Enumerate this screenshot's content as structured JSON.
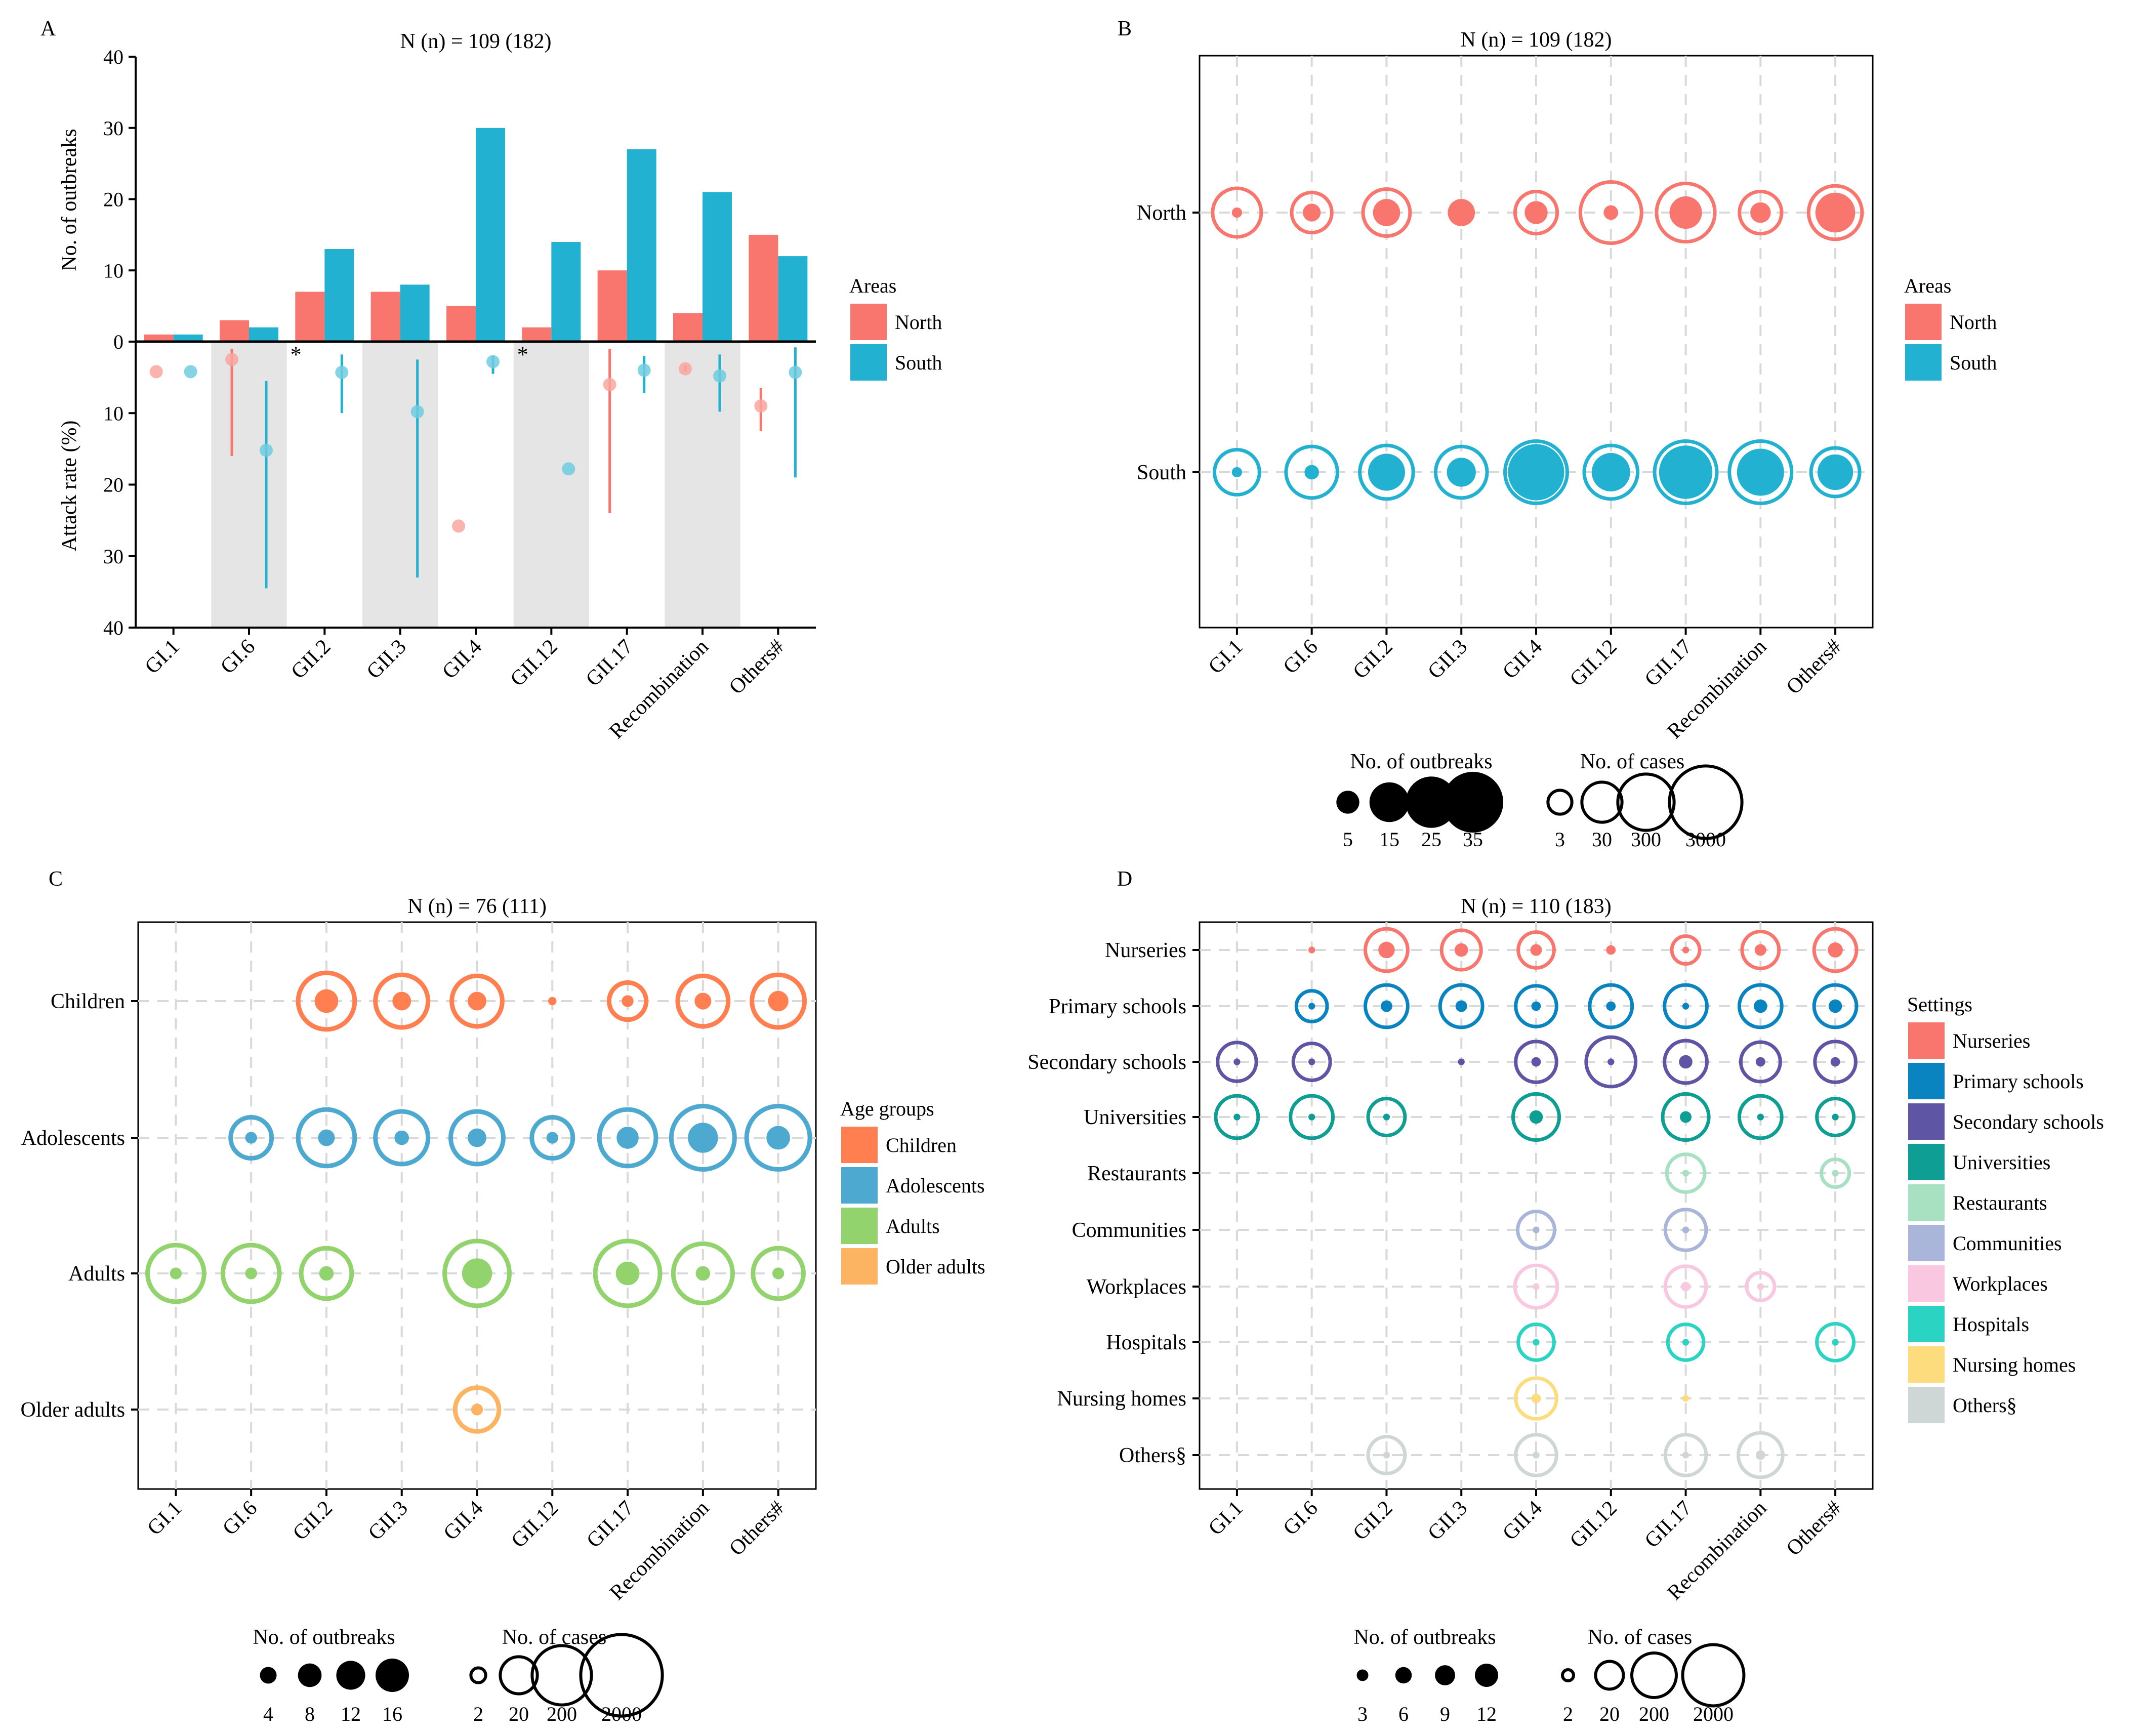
{
  "figure": {
    "description_title": "Norovirus outbreak genotype distribution figure",
    "colors": {
      "north": "#F8766D",
      "south": "#22B1D0",
      "shade": "#E5E5E5",
      "grid": "#D9D9D9"
    }
  },
  "chart_data": [
    {
      "id": "A",
      "type": "bar",
      "panel_label": "A",
      "title": "N (n) = 109 (182)",
      "categories": [
        "GI.1",
        "GI.6",
        "GII.2",
        "GII.3",
        "GII.4",
        "GII.12",
        "GII.17",
        "Recombination",
        "Others#"
      ],
      "top": {
        "ylabel": "No. of outbreaks",
        "ylim": [
          0,
          40
        ],
        "yticks": [
          "40",
          "30",
          "20",
          "10",
          "0"
        ],
        "series": [
          {
            "name": "North",
            "color": "#F8766D",
            "values": [
              1,
              3,
              7,
              7,
              5,
              2,
              10,
              4,
              15
            ]
          },
          {
            "name": "South",
            "color": "#22B1D0",
            "values": [
              1,
              2,
              13,
              8,
              30,
              14,
              27,
              21,
              12
            ]
          }
        ]
      },
      "bottom": {
        "ylabel": "Attack rate (%)",
        "ylim": [
          0,
          40
        ],
        "yticks": [
          "10",
          "20",
          "30",
          "40"
        ],
        "shaded_categories": [
          1,
          3,
          5,
          7
        ],
        "asterisk_categories": [
          2,
          5
        ],
        "asterisk_text": "*",
        "series": [
          {
            "name": "North",
            "color": "#F8766D",
            "points": [
              [
                0,
                4.2,
                null,
                null
              ],
              [
                1,
                2.5,
                1,
                16
              ],
              [
                4,
                25.8,
                null,
                null
              ],
              [
                6,
                6,
                1,
                24
              ],
              [
                7,
                3.8,
                3.3,
                4.2
              ],
              [
                8,
                9,
                6.5,
                12.5
              ]
            ]
          },
          {
            "name": "South",
            "color": "#22B1D0",
            "points": [
              [
                0,
                4.2,
                null,
                null
              ],
              [
                1,
                15.2,
                5.5,
                34.5
              ],
              [
                2,
                4.3,
                1.8,
                10
              ],
              [
                3,
                9.8,
                2.5,
                33
              ],
              [
                4,
                2.8,
                2,
                4.5
              ],
              [
                5,
                17.8,
                null,
                null
              ],
              [
                6,
                4,
                2,
                7.2
              ],
              [
                7,
                4.8,
                1.8,
                9.8
              ],
              [
                8,
                4.3,
                0.8,
                19
              ]
            ]
          }
        ]
      },
      "legend": {
        "title": "Areas",
        "items": [
          "North",
          "South"
        ]
      }
    },
    {
      "id": "B",
      "type": "scatter",
      "panel_label": "B",
      "title": "N (n) = 109 (182)",
      "categories": [
        "GI.1",
        "GI.6",
        "GII.2",
        "GII.3",
        "GII.4",
        "GII.12",
        "GII.17",
        "Recombination",
        "Others#"
      ],
      "rows": [
        "North",
        "South"
      ],
      "row_colors": [
        "#F8766D",
        "#22B1D0"
      ],
      "points": [
        {
          "row": 0,
          "col": 0,
          "outbreaks": 1,
          "cases": 100
        },
        {
          "row": 0,
          "col": 1,
          "outbreaks": 3,
          "cases": 30
        },
        {
          "row": 0,
          "col": 2,
          "outbreaks": 7,
          "cases": 80
        },
        {
          "row": 0,
          "col": 3,
          "outbreaks": 7,
          "cases": null
        },
        {
          "row": 0,
          "col": 4,
          "outbreaks": 5,
          "cases": 40
        },
        {
          "row": 0,
          "col": 5,
          "outbreaks": 2,
          "cases": 600
        },
        {
          "row": 0,
          "col": 6,
          "outbreaks": 10,
          "cases": 400
        },
        {
          "row": 0,
          "col": 7,
          "outbreaks": 4,
          "cases": 40
        },
        {
          "row": 0,
          "col": 8,
          "outbreaks": 15,
          "cases": 200
        },
        {
          "row": 1,
          "col": 0,
          "outbreaks": 1,
          "cases": 60
        },
        {
          "row": 1,
          "col": 1,
          "outbreaks": 2,
          "cases": 150
        },
        {
          "row": 1,
          "col": 2,
          "outbreaks": 13,
          "cases": 200
        },
        {
          "row": 1,
          "col": 3,
          "outbreaks": 8,
          "cases": 150
        },
        {
          "row": 1,
          "col": 4,
          "outbreaks": 30,
          "cases": 700
        },
        {
          "row": 1,
          "col": 5,
          "outbreaks": 14,
          "cases": 200
        },
        {
          "row": 1,
          "col": 6,
          "outbreaks": 27,
          "cases": 700
        },
        {
          "row": 1,
          "col": 7,
          "outbreaks": 21,
          "cases": 700
        },
        {
          "row": 1,
          "col": 8,
          "outbreaks": 12,
          "cases": 100
        }
      ],
      "legend": {
        "title": "Areas",
        "items": [
          "North",
          "South"
        ]
      },
      "size_legend": {
        "outbreaks_title": "No. of outbreaks",
        "outbreaks": [
          {
            "label": "5",
            "value": 5
          },
          {
            "label": "15",
            "value": 15
          },
          {
            "label": "25",
            "value": 25
          },
          {
            "label": "35",
            "value": 35
          }
        ],
        "cases_title": "No. of cases",
        "cases": [
          {
            "label": "3",
            "value": 3
          },
          {
            "label": "30",
            "value": 30
          },
          {
            "label": "300",
            "value": 300
          },
          {
            "label": "3000",
            "value": 3000
          }
        ]
      }
    },
    {
      "id": "C",
      "type": "scatter",
      "panel_label": "C",
      "title": "N (n) = 76 (111)",
      "categories": [
        "GI.1",
        "GI.6",
        "GII.2",
        "GII.3",
        "GII.4",
        "GII.12",
        "GII.17",
        "Recombination",
        "Others#"
      ],
      "rows": [
        "Children",
        "Adolescents",
        "Adults",
        "Older adults"
      ],
      "row_colors": [
        "#FF7F50",
        "#4EA9D0",
        "#92D36E",
        "#FDB462"
      ],
      "points": [
        {
          "row": 0,
          "col": 2,
          "outbreaks": 8,
          "cases": 150
        },
        {
          "row": 0,
          "col": 3,
          "outbreaks": 5,
          "cases": 100
        },
        {
          "row": 0,
          "col": 4,
          "outbreaks": 5,
          "cases": 80
        },
        {
          "row": 0,
          "col": 5,
          "outbreaks": 1,
          "cases": null
        },
        {
          "row": 0,
          "col": 6,
          "outbreaks": 2,
          "cases": 20
        },
        {
          "row": 0,
          "col": 7,
          "outbreaks": 4,
          "cases": 80
        },
        {
          "row": 0,
          "col": 8,
          "outbreaks": 6,
          "cases": 100
        },
        {
          "row": 1,
          "col": 1,
          "outbreaks": 2,
          "cases": 30
        },
        {
          "row": 1,
          "col": 2,
          "outbreaks": 4,
          "cases": 150
        },
        {
          "row": 1,
          "col": 3,
          "outbreaks": 3,
          "cases": 100
        },
        {
          "row": 1,
          "col": 4,
          "outbreaks": 5,
          "cases": 100
        },
        {
          "row": 1,
          "col": 5,
          "outbreaks": 2,
          "cases": 30
        },
        {
          "row": 1,
          "col": 6,
          "outbreaks": 7,
          "cases": 150
        },
        {
          "row": 1,
          "col": 7,
          "outbreaks": 13,
          "cases": 300
        },
        {
          "row": 1,
          "col": 8,
          "outbreaks": 8,
          "cases": 300
        },
        {
          "row": 2,
          "col": 0,
          "outbreaks": 2,
          "cases": 150
        },
        {
          "row": 2,
          "col": 1,
          "outbreaks": 2,
          "cases": 150
        },
        {
          "row": 2,
          "col": 2,
          "outbreaks": 3,
          "cases": 80
        },
        {
          "row": 2,
          "col": 4,
          "outbreaks": 13,
          "cases": 350
        },
        {
          "row": 2,
          "col": 6,
          "outbreaks": 8,
          "cases": 350
        },
        {
          "row": 2,
          "col": 7,
          "outbreaks": 3,
          "cases": 200
        },
        {
          "row": 2,
          "col": 8,
          "outbreaks": 2,
          "cases": 80
        },
        {
          "row": 3,
          "col": 4,
          "outbreaks": 2,
          "cases": 40
        }
      ],
      "legend": {
        "title": "Age groups",
        "items": [
          "Children",
          "Adolescents",
          "Adults",
          "Older adults"
        ]
      },
      "size_legend": {
        "outbreaks_title": "No. of outbreaks",
        "outbreaks": [
          {
            "label": "4",
            "value": 4
          },
          {
            "label": "8",
            "value": 8
          },
          {
            "label": "12",
            "value": 12
          },
          {
            "label": "16",
            "value": 16
          }
        ],
        "cases_title": "No. of cases",
        "cases": [
          {
            "label": "2",
            "value": 2
          },
          {
            "label": "20",
            "value": 20
          },
          {
            "label": "200",
            "value": 200
          },
          {
            "label": "2000",
            "value": 2000
          }
        ]
      }
    },
    {
      "id": "D",
      "type": "scatter",
      "panel_label": "D",
      "title": "N (n) = 110 (183)",
      "categories": [
        "GI.1",
        "GI.6",
        "GII.2",
        "GII.3",
        "GII.4",
        "GII.12",
        "GII.17",
        "Recombination",
        "Others#"
      ],
      "rows": [
        "Nurseries",
        "Primary schools",
        "Secondary schools",
        "Universities",
        "Restaurants",
        "Communities",
        "Workplaces",
        "Hospitals",
        "Nursing homes",
        "Others§"
      ],
      "row_colors": [
        "#F8766D",
        "#0A84C1",
        "#5E55A5",
        "#0E9E94",
        "#A8E0C2",
        "#AAB5DA",
        "#F9C8E0",
        "#2BD3C3",
        "#FDDC7E",
        "#CED7D6"
      ],
      "points": [
        {
          "row": 0,
          "col": 1,
          "outbreaks": 1,
          "cases": null
        },
        {
          "row": 0,
          "col": 2,
          "outbreaks": 6,
          "cases": 150
        },
        {
          "row": 0,
          "col": 3,
          "outbreaks": 4,
          "cases": 100
        },
        {
          "row": 0,
          "col": 4,
          "outbreaks": 3,
          "cases": 60
        },
        {
          "row": 0,
          "col": 5,
          "outbreaks": 2,
          "cases": null
        },
        {
          "row": 0,
          "col": 6,
          "outbreaks": 1,
          "cases": 20
        },
        {
          "row": 0,
          "col": 7,
          "outbreaks": 3,
          "cases": 70
        },
        {
          "row": 0,
          "col": 8,
          "outbreaks": 5,
          "cases": 150
        },
        {
          "row": 1,
          "col": 1,
          "outbreaks": 1,
          "cases": 30
        },
        {
          "row": 1,
          "col": 2,
          "outbreaks": 3,
          "cases": 150
        },
        {
          "row": 1,
          "col": 3,
          "outbreaks": 3,
          "cases": 150
        },
        {
          "row": 1,
          "col": 4,
          "outbreaks": 2,
          "cases": 120
        },
        {
          "row": 1,
          "col": 5,
          "outbreaks": 2,
          "cases": 150
        },
        {
          "row": 1,
          "col": 6,
          "outbreaks": 1,
          "cases": 150
        },
        {
          "row": 1,
          "col": 7,
          "outbreaks": 4,
          "cases": 150
        },
        {
          "row": 1,
          "col": 8,
          "outbreaks": 4,
          "cases": 150
        },
        {
          "row": 2,
          "col": 0,
          "outbreaks": 1,
          "cases": 90
        },
        {
          "row": 2,
          "col": 1,
          "outbreaks": 1,
          "cases": 70
        },
        {
          "row": 2,
          "col": 3,
          "outbreaks": 1,
          "cases": null
        },
        {
          "row": 2,
          "col": 4,
          "outbreaks": 2,
          "cases": 120
        },
        {
          "row": 2,
          "col": 5,
          "outbreaks": 1,
          "cases": 400
        },
        {
          "row": 2,
          "col": 6,
          "outbreaks": 4,
          "cases": 150
        },
        {
          "row": 2,
          "col": 7,
          "outbreaks": 2,
          "cases": 100
        },
        {
          "row": 2,
          "col": 8,
          "outbreaks": 2,
          "cases": 120
        },
        {
          "row": 3,
          "col": 0,
          "outbreaks": 1,
          "cases": 150
        },
        {
          "row": 3,
          "col": 1,
          "outbreaks": 1,
          "cases": 150
        },
        {
          "row": 3,
          "col": 2,
          "outbreaks": 1,
          "cases": 70
        },
        {
          "row": 3,
          "col": 4,
          "outbreaks": 4,
          "cases": 250
        },
        {
          "row": 3,
          "col": 6,
          "outbreaks": 3,
          "cases": 250
        },
        {
          "row": 3,
          "col": 7,
          "outbreaks": 1,
          "cases": 150
        },
        {
          "row": 3,
          "col": 8,
          "outbreaks": 1,
          "cases": 70
        },
        {
          "row": 4,
          "col": 6,
          "outbreaks": 1,
          "cases": 80
        },
        {
          "row": 4,
          "col": 8,
          "outbreaks": 1,
          "cases": 20
        },
        {
          "row": 5,
          "col": 4,
          "outbreaks": 1,
          "cases": 70
        },
        {
          "row": 5,
          "col": 6,
          "outbreaks": 1,
          "cases": 120
        },
        {
          "row": 6,
          "col": 4,
          "outbreaks": 1,
          "cases": 150
        },
        {
          "row": 6,
          "col": 6,
          "outbreaks": 2,
          "cases": 120
        },
        {
          "row": 6,
          "col": 7,
          "outbreaks": 1,
          "cases": 20
        },
        {
          "row": 7,
          "col": 4,
          "outbreaks": 1,
          "cases": 60
        },
        {
          "row": 7,
          "col": 6,
          "outbreaks": 1,
          "cases": 60
        },
        {
          "row": 7,
          "col": 8,
          "outbreaks": 1,
          "cases": 70
        },
        {
          "row": 8,
          "col": 4,
          "outbreaks": 2,
          "cases": 120
        },
        {
          "row": 8,
          "col": 6,
          "outbreaks": 1,
          "cases": null
        },
        {
          "row": 9,
          "col": 2,
          "outbreaks": 1,
          "cases": 70
        },
        {
          "row": 9,
          "col": 4,
          "outbreaks": 1,
          "cases": 120
        },
        {
          "row": 9,
          "col": 6,
          "outbreaks": 1,
          "cases": 120
        },
        {
          "row": 9,
          "col": 7,
          "outbreaks": 2,
          "cases": 200
        }
      ],
      "legend": {
        "title": "Settings",
        "items": [
          "Nurseries",
          "Primary schools",
          "Secondary schools",
          "Universities",
          "Restaurants",
          "Communities",
          "Workplaces",
          "Hospitals",
          "Nursing homes",
          "Others§"
        ]
      },
      "size_legend": {
        "outbreaks_title": "No. of outbreaks",
        "outbreaks": [
          {
            "label": "3",
            "value": 3
          },
          {
            "label": "6",
            "value": 6
          },
          {
            "label": "9",
            "value": 9
          },
          {
            "label": "12",
            "value": 12
          }
        ],
        "cases_title": "No. of cases",
        "cases": [
          {
            "label": "2",
            "value": 2
          },
          {
            "label": "20",
            "value": 20
          },
          {
            "label": "200",
            "value": 200
          },
          {
            "label": "2000",
            "value": 2000
          }
        ]
      }
    }
  ]
}
